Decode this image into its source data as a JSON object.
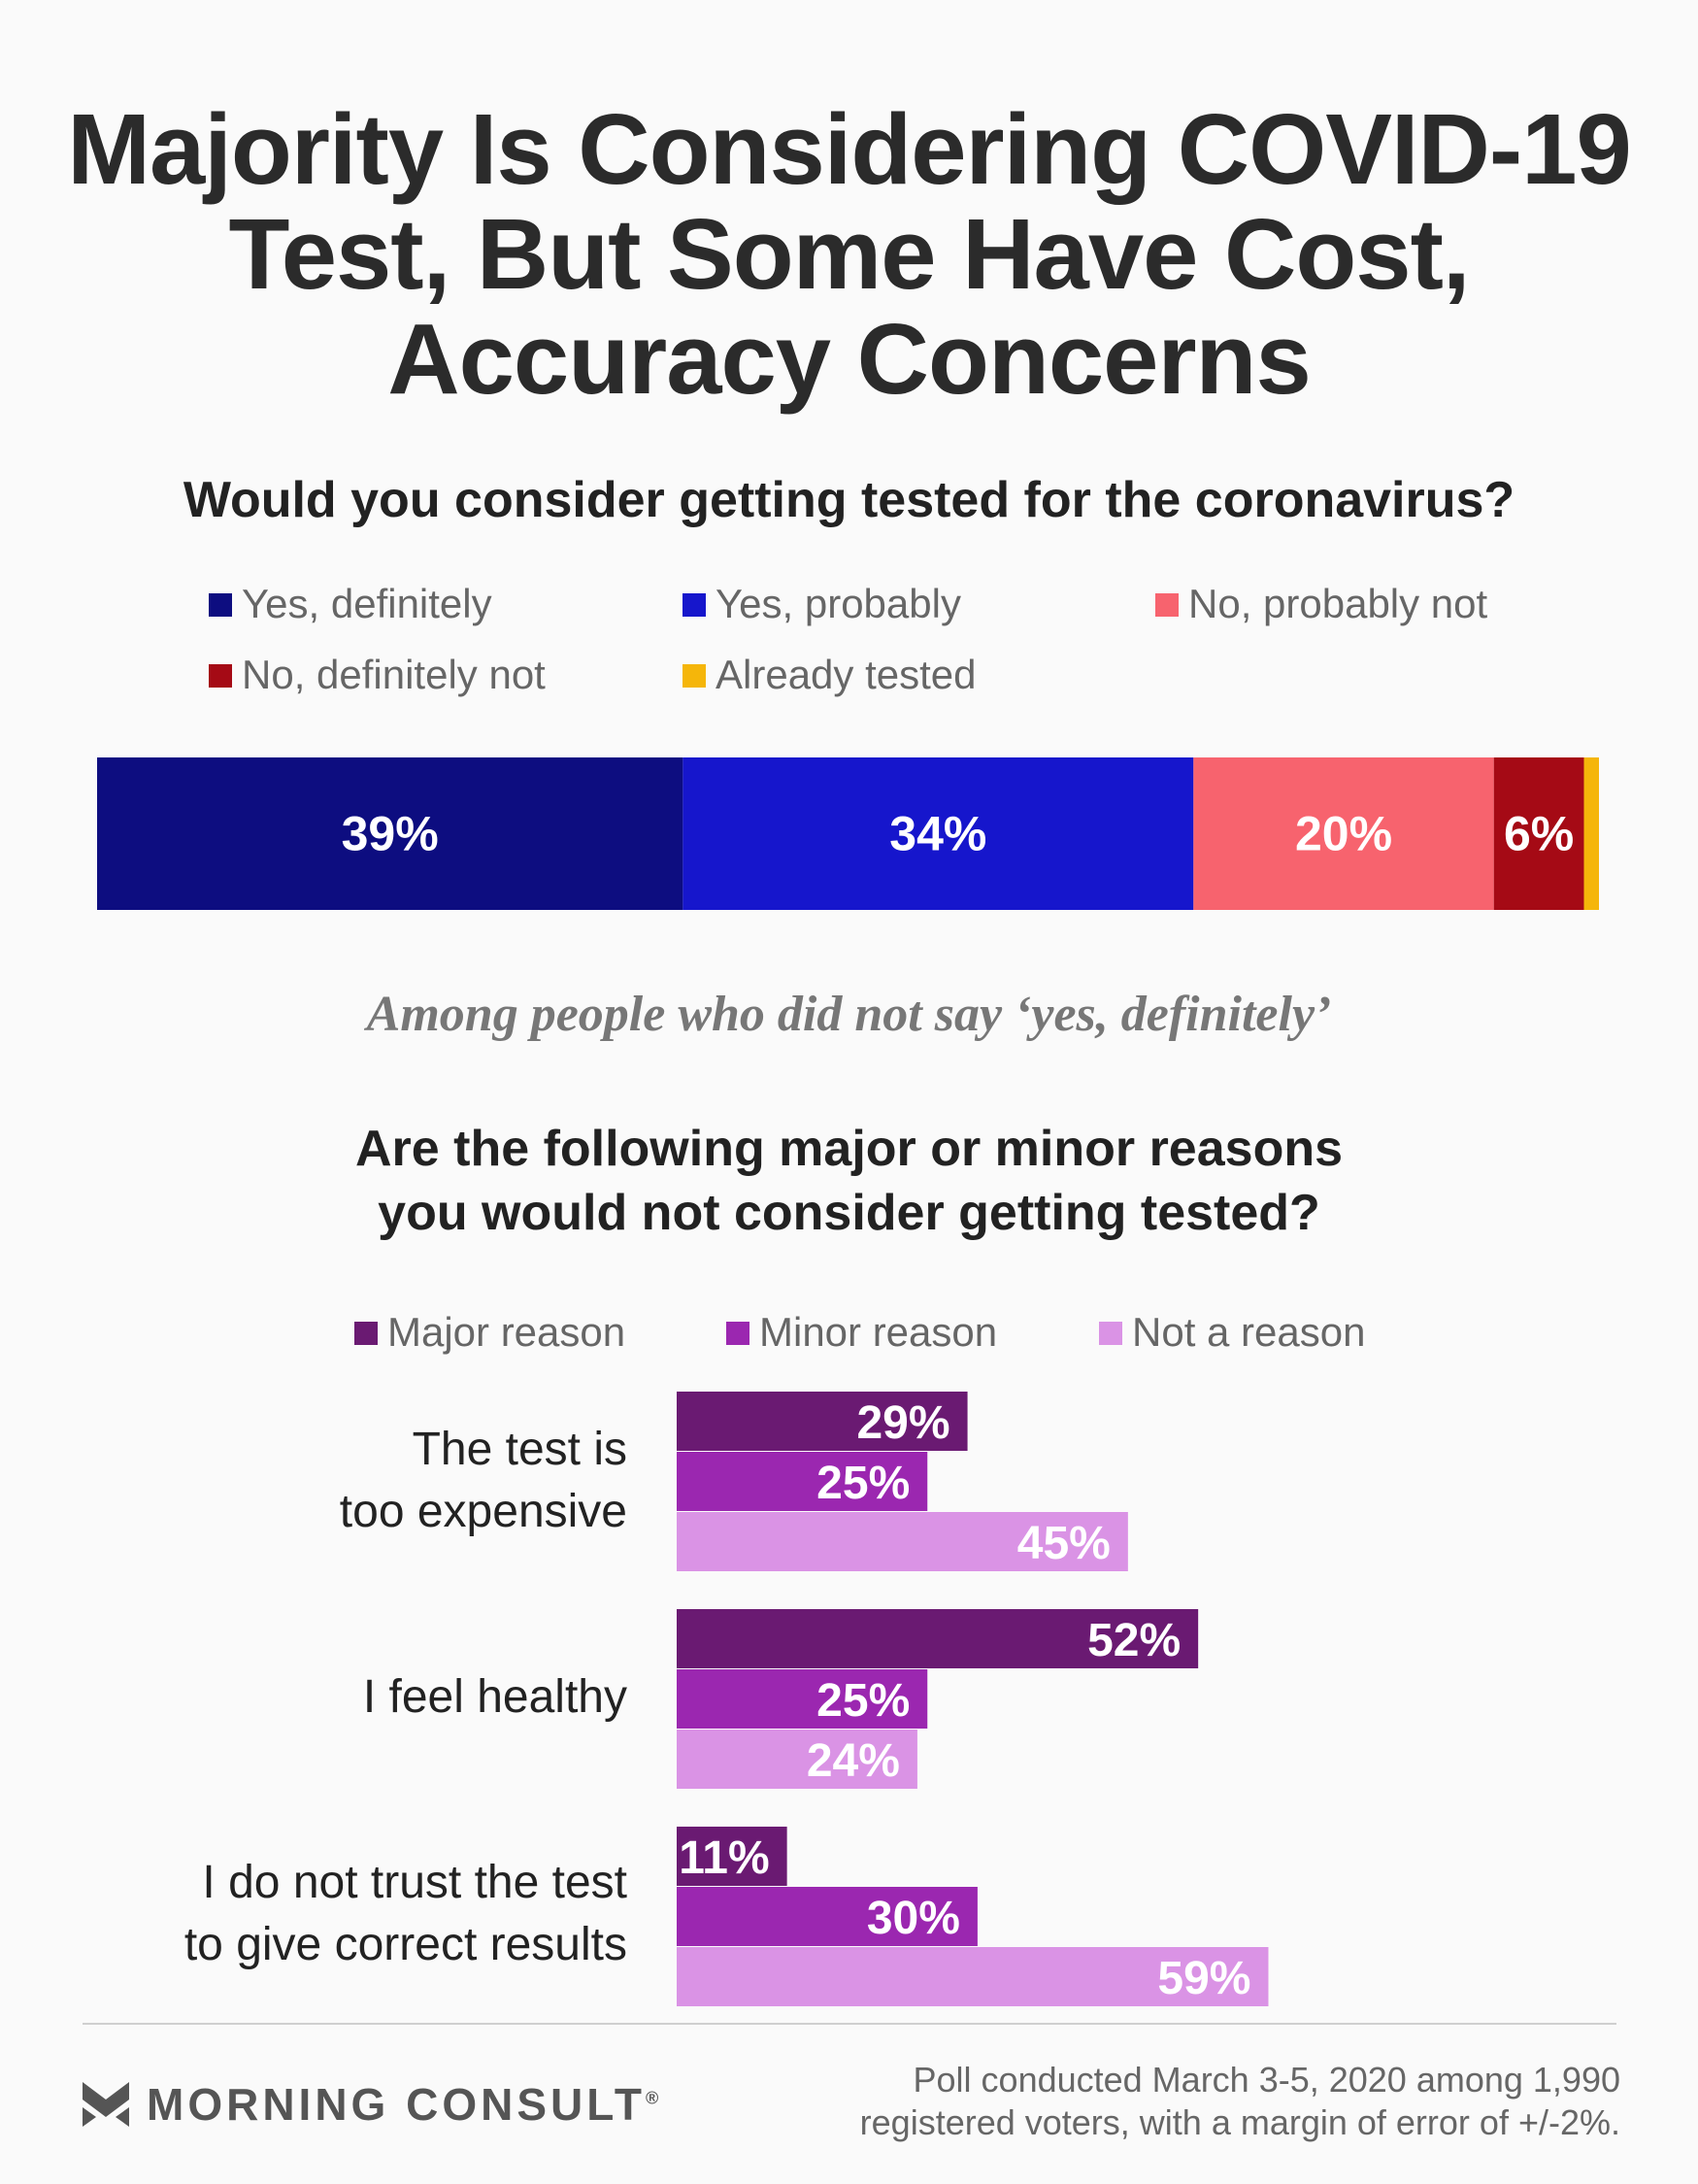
{
  "title_lines": [
    "Majority Is Considering COVID-19",
    "Test, But Some Have Cost,",
    "Accuracy Concerns"
  ],
  "chart_data": [
    {
      "type": "bar",
      "orientation": "horizontal-stacked",
      "title": "Would you consider getting tested for the coronavirus?",
      "legend_placement": "top",
      "series": [
        {
          "name": "Yes, definitely",
          "value": 39,
          "label": "39%",
          "color": "#0d0d80"
        },
        {
          "name": "Yes, probably",
          "value": 34,
          "label": "34%",
          "color": "#1616cc"
        },
        {
          "name": "No, probably not",
          "value": 20,
          "label": "20%",
          "color": "#f7636e"
        },
        {
          "name": "No, definitely not",
          "value": 6,
          "label": "6%",
          "color": "#a50a15"
        },
        {
          "name": "Already tested",
          "value": 1,
          "label": "",
          "color": "#f5b60a"
        }
      ],
      "xlim": [
        0,
        100
      ]
    },
    {
      "type": "bar",
      "orientation": "horizontal-grouped",
      "note": "Among people who did not say ‘yes, definitely’",
      "title_lines": [
        "Are the following major or minor reasons",
        "you would not consider getting tested?"
      ],
      "legend_placement": "top",
      "series": [
        {
          "name": "Major reason",
          "color": "#6a1a72",
          "values": [
            29,
            52,
            11
          ],
          "labels": [
            "29%",
            "52%",
            "11%"
          ]
        },
        {
          "name": "Minor reason",
          "color": "#9b27b0",
          "values": [
            25,
            25,
            30
          ],
          "labels": [
            "25%",
            "25%",
            "30%"
          ]
        },
        {
          "name": "Not a reason",
          "color": "#da93e5",
          "values": [
            45,
            24,
            59
          ],
          "labels": [
            "45%",
            "24%",
            "59%"
          ]
        }
      ],
      "categories": [
        {
          "lines": [
            "The test is",
            "too expensive"
          ]
        },
        {
          "lines": [
            "I feel healthy"
          ]
        },
        {
          "lines": [
            "I do not trust the test",
            "to give correct results"
          ]
        }
      ],
      "xlim": [
        0,
        100
      ]
    }
  ],
  "footer": {
    "brand": "MORNING CONSULT",
    "registered_mark": "®",
    "note_lines": [
      "Poll conducted March 3-5, 2020 among 1,990",
      "registered voters, with a margin of error of +/-2%."
    ]
  }
}
